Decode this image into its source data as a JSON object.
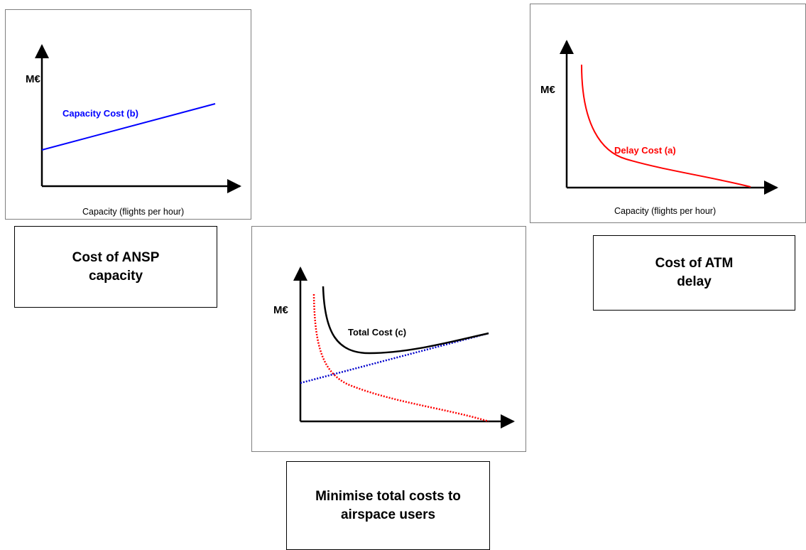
{
  "panels": {
    "capacity_cost": {
      "y_axis_label": "M€",
      "x_axis_label": "Capacity (flights per hour)",
      "curve_label": "Capacity Cost (b)",
      "curve_color": "#0000ff"
    },
    "delay_cost": {
      "y_axis_label": "M€",
      "x_axis_label": "Capacity (flights per hour)",
      "curve_label": "Delay Cost (a)",
      "curve_color": "#ff0000"
    },
    "total_cost": {
      "y_axis_label": "M€",
      "curve_label": "Total Cost (c)",
      "total_color": "#000000",
      "capacity_color": "#0000cc",
      "delay_color": "#ff0000"
    }
  },
  "captions": {
    "ansp_line1": "Cost of ANSP",
    "ansp_line2": "capacity",
    "atm_line1": "Cost of ATM",
    "atm_line2": "delay",
    "total_line1": "Minimise total costs to",
    "total_line2": "airspace users"
  }
}
